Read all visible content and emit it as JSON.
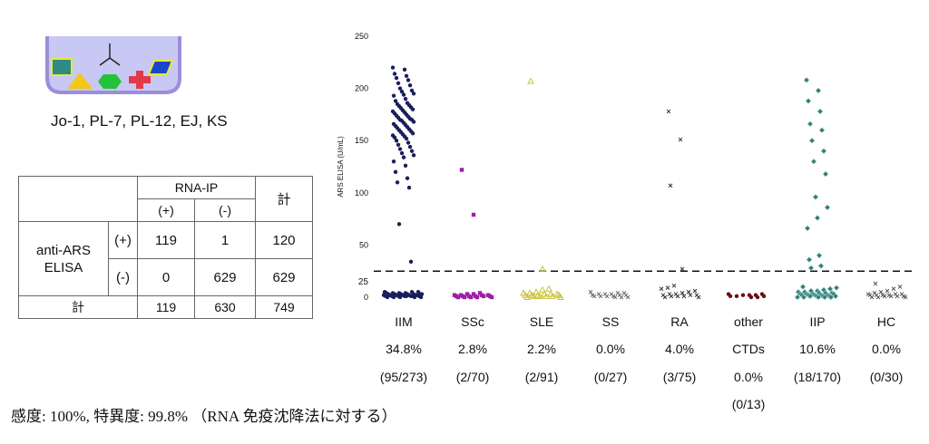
{
  "antigen_list": "Jo-1, PL-7, PL-12, EJ, KS",
  "table": {
    "rna_ip_header": "RNA-IP",
    "total_header": "計",
    "pos": "(+)",
    "neg": "(-)",
    "row_header_line1": "anti-ARS",
    "row_header_line2": "ELISA",
    "rows": [
      [
        "119",
        "1",
        "120"
      ],
      [
        "0",
        "629",
        "629"
      ]
    ],
    "total_row": [
      "計",
      "119",
      "630",
      "749"
    ]
  },
  "footer": "感度: 100%,  特異度: 99.8%  （RNA 免疫沈降法に対する）",
  "chart_data": {
    "type": "scatter",
    "ylabel": "ARS ELISA (U/mL)",
    "ylim": [
      0,
      250
    ],
    "yticks": [
      "0",
      "50",
      "100",
      "150",
      "200",
      "250"
    ],
    "cutoff": 25,
    "cutoff_label": "25",
    "legend": "none",
    "categories": [
      {
        "name": "IIM",
        "line2": "34.8%",
        "line3": "(95/273)",
        "line4": "",
        "marker": "circle",
        "color": "#1a1f5c",
        "values": [
          220,
          218,
          214,
          212,
          210,
          208,
          205,
          203,
          200,
          198,
          197,
          195,
          194,
          193,
          190,
          188,
          186,
          185,
          184,
          183,
          182,
          181,
          180,
          179,
          178,
          177,
          176,
          175,
          174,
          173,
          172,
          171,
          170,
          170,
          169,
          168,
          167,
          166,
          165,
          164,
          163,
          162,
          161,
          160,
          159,
          158,
          157,
          156,
          155,
          154,
          153,
          152,
          150,
          148,
          146,
          144,
          142,
          140,
          138,
          136,
          134,
          130,
          126,
          120,
          114,
          110,
          105,
          70,
          34,
          5,
          5,
          5,
          4,
          4,
          4,
          4,
          3,
          3,
          3,
          3,
          3,
          3,
          3,
          2,
          2,
          2,
          2,
          2,
          2,
          2,
          1,
          1,
          1,
          1,
          1,
          1,
          1,
          1,
          0,
          0,
          0,
          0,
          0
        ]
      },
      {
        "name": "SSc",
        "line2": "2.8%",
        "line3": "(2/70)",
        "line4": "",
        "marker": "square",
        "color": "#9b1fa8",
        "values": [
          122,
          79,
          4,
          3,
          3,
          2,
          2,
          2,
          2,
          1,
          1,
          1,
          1,
          1,
          1,
          0,
          0,
          0,
          0,
          0
        ]
      },
      {
        "name": "SLE",
        "line2": "2.2%",
        "line3": "(2/91)",
        "line4": "",
        "marker": "triangle",
        "color": "#c9c23a",
        "values": [
          207,
          27,
          8,
          7,
          5,
          4,
          4,
          3,
          3,
          3,
          2,
          2,
          2,
          2,
          1,
          1,
          1,
          1,
          0,
          0
        ]
      },
      {
        "name": "SS",
        "line2": "0.0%",
        "line3": "(0/27)",
        "line4": "",
        "marker": "cross",
        "color": "#6a6a6a",
        "values": [
          5,
          4,
          4,
          3,
          3,
          3,
          2,
          2,
          2,
          1,
          1,
          1,
          1,
          0,
          0,
          0
        ]
      },
      {
        "name": "RA",
        "line2": "4.0%",
        "line3": "(3/75)",
        "line4": "",
        "marker": "cross",
        "color": "#333333",
        "values": [
          178,
          151,
          107,
          27,
          11,
          9,
          8,
          6,
          5,
          4,
          3,
          3,
          2,
          2,
          2,
          1,
          1,
          1,
          0,
          0
        ]
      },
      {
        "name": "other",
        "line2": "CTDs",
        "line3": "0.0%",
        "line4": "(0/13)",
        "marker": "circle",
        "color": "#6a1010",
        "values": [
          3,
          3,
          2,
          2,
          2,
          1,
          1,
          1,
          0,
          0
        ]
      },
      {
        "name": "IIP",
        "line2": "10.6%",
        "line3": "(18/170)",
        "line4": "",
        "marker": "diamond",
        "color": "#2f7d7a",
        "values": [
          208,
          198,
          188,
          178,
          166,
          160,
          150,
          140,
          130,
          118,
          96,
          86,
          76,
          66,
          40,
          36,
          30,
          28,
          10,
          9,
          8,
          7,
          6,
          6,
          5,
          5,
          4,
          4,
          4,
          3,
          3,
          3,
          3,
          2,
          2,
          2,
          2,
          2,
          1,
          1,
          1,
          1,
          1,
          0,
          0,
          0,
          0,
          0
        ]
      },
      {
        "name": "HC",
        "line2": "0.0%",
        "line3": "(0/30)",
        "line4": "",
        "marker": "cross",
        "color": "#555555",
        "values": [
          13,
          10,
          8,
          6,
          5,
          4,
          3,
          3,
          3,
          2,
          2,
          2,
          2,
          1,
          1,
          1,
          1,
          0,
          0,
          0
        ]
      }
    ]
  }
}
